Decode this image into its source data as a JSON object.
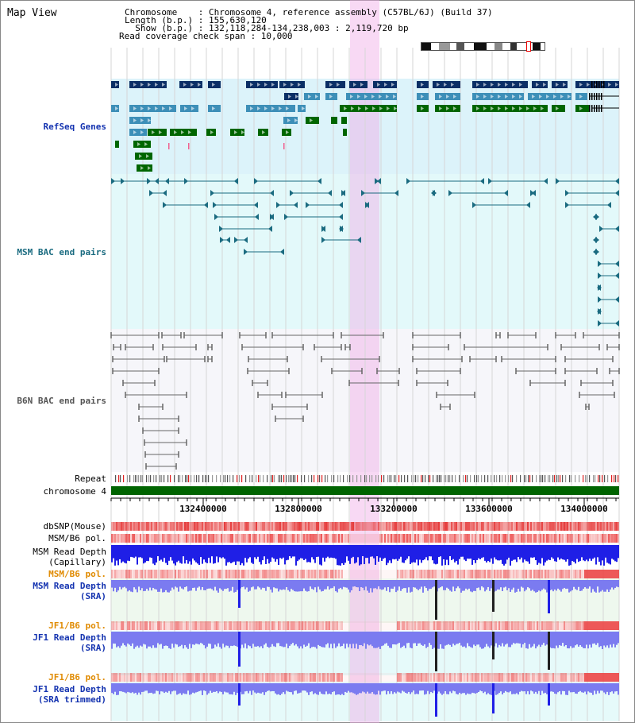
{
  "page": {
    "title": "Map View"
  },
  "info": {
    "line1": "Chromosome    : Chromosome 4, reference assembly (C57BL/6J) (Build 37)",
    "line2": "Length (b.p.) : 155,630,120",
    "line3": "  Show (b.p.) : 132,118,284-134,238,003 : 2,119,720 bp",
    "line4": "Read coverage check span : 10,000"
  },
  "tracks": {
    "refseq": "RefSeq Genes",
    "msm_bac": "MSM BAC end pairs",
    "b6n_bac": "B6N BAC end pairs",
    "repeat": "Repeat",
    "chromosome": "chromosome 4",
    "dbsnp": "dbSNP(Mouse)",
    "msm_b6_pol_1": "MSM/B6 pol.",
    "msm_depth_cap_1": "MSM Read Depth",
    "msm_depth_cap_2": "(Capillary)",
    "msm_b6_pol_2": "MSM/B6 pol.",
    "msm_depth_sra_1": "MSM Read Depth",
    "msm_depth_sra_2": "(SRA)",
    "jf1_b6_pol_1": "JF1/B6 pol.",
    "jf1_depth_sra_1": "JF1 Read Depth",
    "jf1_depth_sra_2": "(SRA)",
    "jf1_b6_pol_2": "JF1/B6 pol.",
    "jf1_depth_trim_1": "JF1 Read Depth",
    "jf1_depth_trim_2": "(SRA trimmed)"
  },
  "axis": {
    "ticks": [
      "132400000",
      "132800000",
      "133200000",
      "133600000",
      "134000000"
    ]
  },
  "colors": {
    "gene_dark": "#0b2f66",
    "gene_mid": "#3d8fb8",
    "gene_green": "#006600",
    "msm_line": "#1a6b80",
    "b6n_line": "#666666",
    "depth_blue": "#1f1fe6",
    "depth_light": "#7b7bf0",
    "highlight": "#f3b5ea"
  }
}
